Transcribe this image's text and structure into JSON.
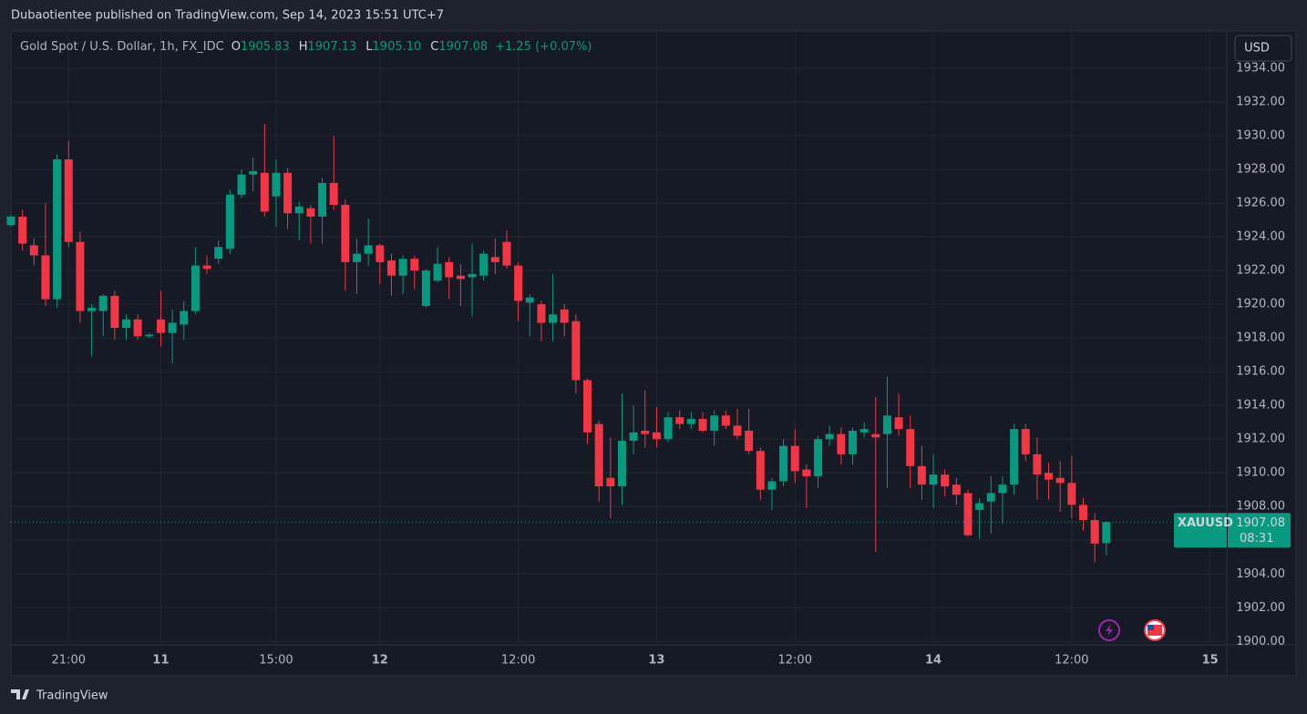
{
  "header": {
    "published": "Dubaotientee published on TradingView.com, Sep 14, 2023 15:51 UTC+7",
    "symbol": "Gold Spot / U.S. Dollar, 1h, FX_IDC",
    "ohlc": [
      {
        "label": "O",
        "value": "1905.83"
      },
      {
        "label": "H",
        "value": "1907.13"
      },
      {
        "label": "L",
        "value": "1905.10"
      },
      {
        "label": "C",
        "value": "1907.08"
      }
    ],
    "change": "+1.25 (+0.07%)",
    "currency": "USD"
  },
  "price_label": {
    "symbol": "XAUUSD",
    "price": "1907.08",
    "countdown": "08:31"
  },
  "footer": {
    "brand": "TradingView"
  },
  "chart_data": {
    "type": "candlestick",
    "series": [
      {
        "name": "XAUUSD",
        "up_color": "#089981",
        "down_color": "#f23645",
        "open": [
          1924.7,
          1925.2,
          1923.5,
          1922.9,
          1920.3,
          1928.6,
          1923.7,
          1919.6,
          1919.6,
          1920.5,
          1918.6,
          1919.1,
          1918.1,
          1919.1,
          1918.3,
          1918.8,
          1919.6,
          1922.3,
          1922.7,
          1923.3,
          1926.5,
          1927.7,
          1927.8,
          1926.4,
          1927.8,
          1925.4,
          1925.7,
          1925.2,
          1927.2,
          1925.9,
          1922.5,
          1923.0,
          1923.5,
          1922.6,
          1921.7,
          1922.7,
          1919.9,
          1921.4,
          1922.5,
          1921.7,
          1921.6,
          1921.7,
          1922.8,
          1923.7,
          1922.3,
          1920.1,
          1920.0,
          1918.9,
          1919.7,
          1919.0,
          1915.5,
          1912.9,
          1909.7,
          1909.2,
          1911.9,
          1912.5,
          1912.4,
          1912.0,
          1913.3,
          1912.9,
          1913.2,
          1912.5,
          1913.4,
          1912.8,
          1912.5,
          1911.3,
          1909.0,
          1909.5,
          1911.6,
          1910.2,
          1909.8,
          1912.0,
          1912.3,
          1911.1,
          1912.4,
          1912.3,
          1912.3,
          1913.3,
          1912.6,
          1910.4,
          1909.3,
          1909.9,
          1909.3,
          1908.8,
          1907.8,
          1908.3,
          1908.8,
          1909.3,
          1912.6,
          1911.1,
          1910.0,
          1909.7,
          1909.4,
          1908.1,
          1907.2,
          1905.83
        ],
        "high": [
          1925.3,
          1925.6,
          1923.9,
          1926.0,
          1928.9,
          1929.7,
          1924.3,
          1920.0,
          1920.6,
          1920.8,
          1919.4,
          1919.4,
          1918.3,
          1920.8,
          1919.7,
          1920.2,
          1923.4,
          1922.9,
          1923.8,
          1926.8,
          1928.0,
          1928.7,
          1930.7,
          1928.6,
          1928.1,
          1926.1,
          1925.9,
          1927.5,
          1930.0,
          1926.2,
          1923.9,
          1925.1,
          1923.6,
          1923.0,
          1922.9,
          1922.9,
          1922.1,
          1923.4,
          1922.8,
          1922.4,
          1923.6,
          1923.2,
          1923.9,
          1924.4,
          1922.5,
          1920.6,
          1920.2,
          1921.8,
          1920.0,
          1919.4,
          1915.6,
          1913.1,
          1912.1,
          1914.7,
          1914.0,
          1914.9,
          1913.9,
          1913.6,
          1913.7,
          1913.6,
          1913.6,
          1913.7,
          1913.7,
          1913.8,
          1913.8,
          1911.5,
          1909.7,
          1912.0,
          1912.6,
          1910.5,
          1912.2,
          1912.8,
          1912.7,
          1912.7,
          1913.0,
          1914.5,
          1915.7,
          1914.7,
          1913.4,
          1911.6,
          1911.1,
          1910.2,
          1909.7,
          1909.0,
          1908.5,
          1909.8,
          1909.8,
          1912.9,
          1912.9,
          1912.1,
          1910.6,
          1910.7,
          1911.0,
          1908.5,
          1907.6,
          1907.13
        ],
        "low": [
          1924.6,
          1923.2,
          1922.3,
          1919.9,
          1919.8,
          1923.4,
          1918.9,
          1916.9,
          1918.1,
          1917.9,
          1917.9,
          1917.9,
          1918.0,
          1917.5,
          1916.5,
          1917.9,
          1919.4,
          1921.8,
          1922.4,
          1923.0,
          1926.3,
          1926.7,
          1925.2,
          1924.6,
          1924.5,
          1923.8,
          1923.6,
          1923.6,
          1925.6,
          1920.8,
          1920.6,
          1922.3,
          1921.2,
          1920.5,
          1920.6,
          1920.9,
          1919.8,
          1921.3,
          1920.3,
          1919.9,
          1919.3,
          1921.4,
          1921.8,
          1922.1,
          1919.0,
          1918.1,
          1917.8,
          1917.8,
          1918.1,
          1914.7,
          1911.7,
          1908.3,
          1907.3,
          1908.1,
          1911.1,
          1911.5,
          1911.5,
          1911.8,
          1912.6,
          1912.6,
          1912.4,
          1911.6,
          1912.6,
          1912.0,
          1911.1,
          1908.4,
          1907.8,
          1909.2,
          1909.4,
          1907.9,
          1909.1,
          1911.6,
          1910.5,
          1910.5,
          1912.1,
          1905.3,
          1909.1,
          1912.2,
          1909.1,
          1908.4,
          1907.9,
          1908.6,
          1908.1,
          1906.2,
          1906.1,
          1906.4,
          1907.0,
          1908.7,
          1910.7,
          1908.4,
          1908.4,
          1907.7,
          1907.3,
          1906.6,
          1904.7,
          1905.1
        ],
        "close": [
          1925.2,
          1923.6,
          1922.9,
          1920.3,
          1928.6,
          1923.7,
          1919.6,
          1919.8,
          1920.5,
          1918.6,
          1919.1,
          1918.1,
          1918.2,
          1918.3,
          1918.9,
          1919.6,
          1922.3,
          1922.1,
          1923.4,
          1926.5,
          1927.7,
          1927.9,
          1925.5,
          1927.8,
          1925.4,
          1925.8,
          1925.2,
          1927.2,
          1925.9,
          1922.5,
          1923.0,
          1923.5,
          1922.5,
          1921.7,
          1922.7,
          1922.0,
          1922.0,
          1922.4,
          1921.6,
          1921.5,
          1921.8,
          1923.0,
          1922.5,
          1922.3,
          1920.2,
          1920.4,
          1918.9,
          1919.4,
          1918.9,
          1915.5,
          1912.4,
          1909.2,
          1909.2,
          1911.9,
          1912.4,
          1912.3,
          1912.0,
          1913.3,
          1912.9,
          1913.2,
          1912.5,
          1913.4,
          1912.8,
          1912.2,
          1911.3,
          1909.0,
          1909.5,
          1911.6,
          1910.1,
          1909.8,
          1912.0,
          1912.3,
          1911.1,
          1912.5,
          1912.6,
          1912.1,
          1913.4,
          1912.6,
          1910.4,
          1909.3,
          1909.9,
          1909.2,
          1908.7,
          1906.3,
          1908.2,
          1908.8,
          1909.3,
          1912.6,
          1911.1,
          1909.9,
          1909.6,
          1909.4,
          1908.1,
          1907.2,
          1905.8,
          1907.08
        ]
      }
    ],
    "ylim": [
      1899.8,
      1936
    ],
    "yticks": [
      {
        "value": 1900,
        "label": "1900.00"
      },
      {
        "value": 1902,
        "label": "1902.00"
      },
      {
        "value": 1904,
        "label": "1904.00"
      },
      {
        "value": 1906,
        "label": "1906.00"
      },
      {
        "value": 1908,
        "label": "1908.00"
      },
      {
        "value": 1910,
        "label": "1910.00"
      },
      {
        "value": 1912,
        "label": "1912.00"
      },
      {
        "value": 1914,
        "label": "1914.00"
      },
      {
        "value": 1916,
        "label": "1916.00"
      },
      {
        "value": 1918,
        "label": "1918.00"
      },
      {
        "value": 1920,
        "label": "1920.00"
      },
      {
        "value": 1922,
        "label": "1922.00"
      },
      {
        "value": 1924,
        "label": "1924.00"
      },
      {
        "value": 1926,
        "label": "1926.00"
      },
      {
        "value": 1928,
        "label": "1928.00"
      },
      {
        "value": 1930,
        "label": "1930.00"
      },
      {
        "value": 1932,
        "label": "1932.00"
      },
      {
        "value": 1934,
        "label": "1934.00"
      }
    ],
    "xlim": [
      0,
      105.45
    ],
    "xticks": [
      {
        "value": 5,
        "label": "21:00"
      },
      {
        "value": 13,
        "label": "11"
      },
      {
        "value": 23,
        "label": "15:00"
      },
      {
        "value": 32,
        "label": "12"
      },
      {
        "value": 44,
        "label": "12:00"
      },
      {
        "value": 56,
        "label": "13"
      },
      {
        "value": 68,
        "label": "12:00"
      },
      {
        "value": 80,
        "label": "14"
      },
      {
        "value": 92,
        "label": "12:00"
      },
      {
        "value": 104,
        "label": "15"
      }
    ],
    "grid": true
  }
}
